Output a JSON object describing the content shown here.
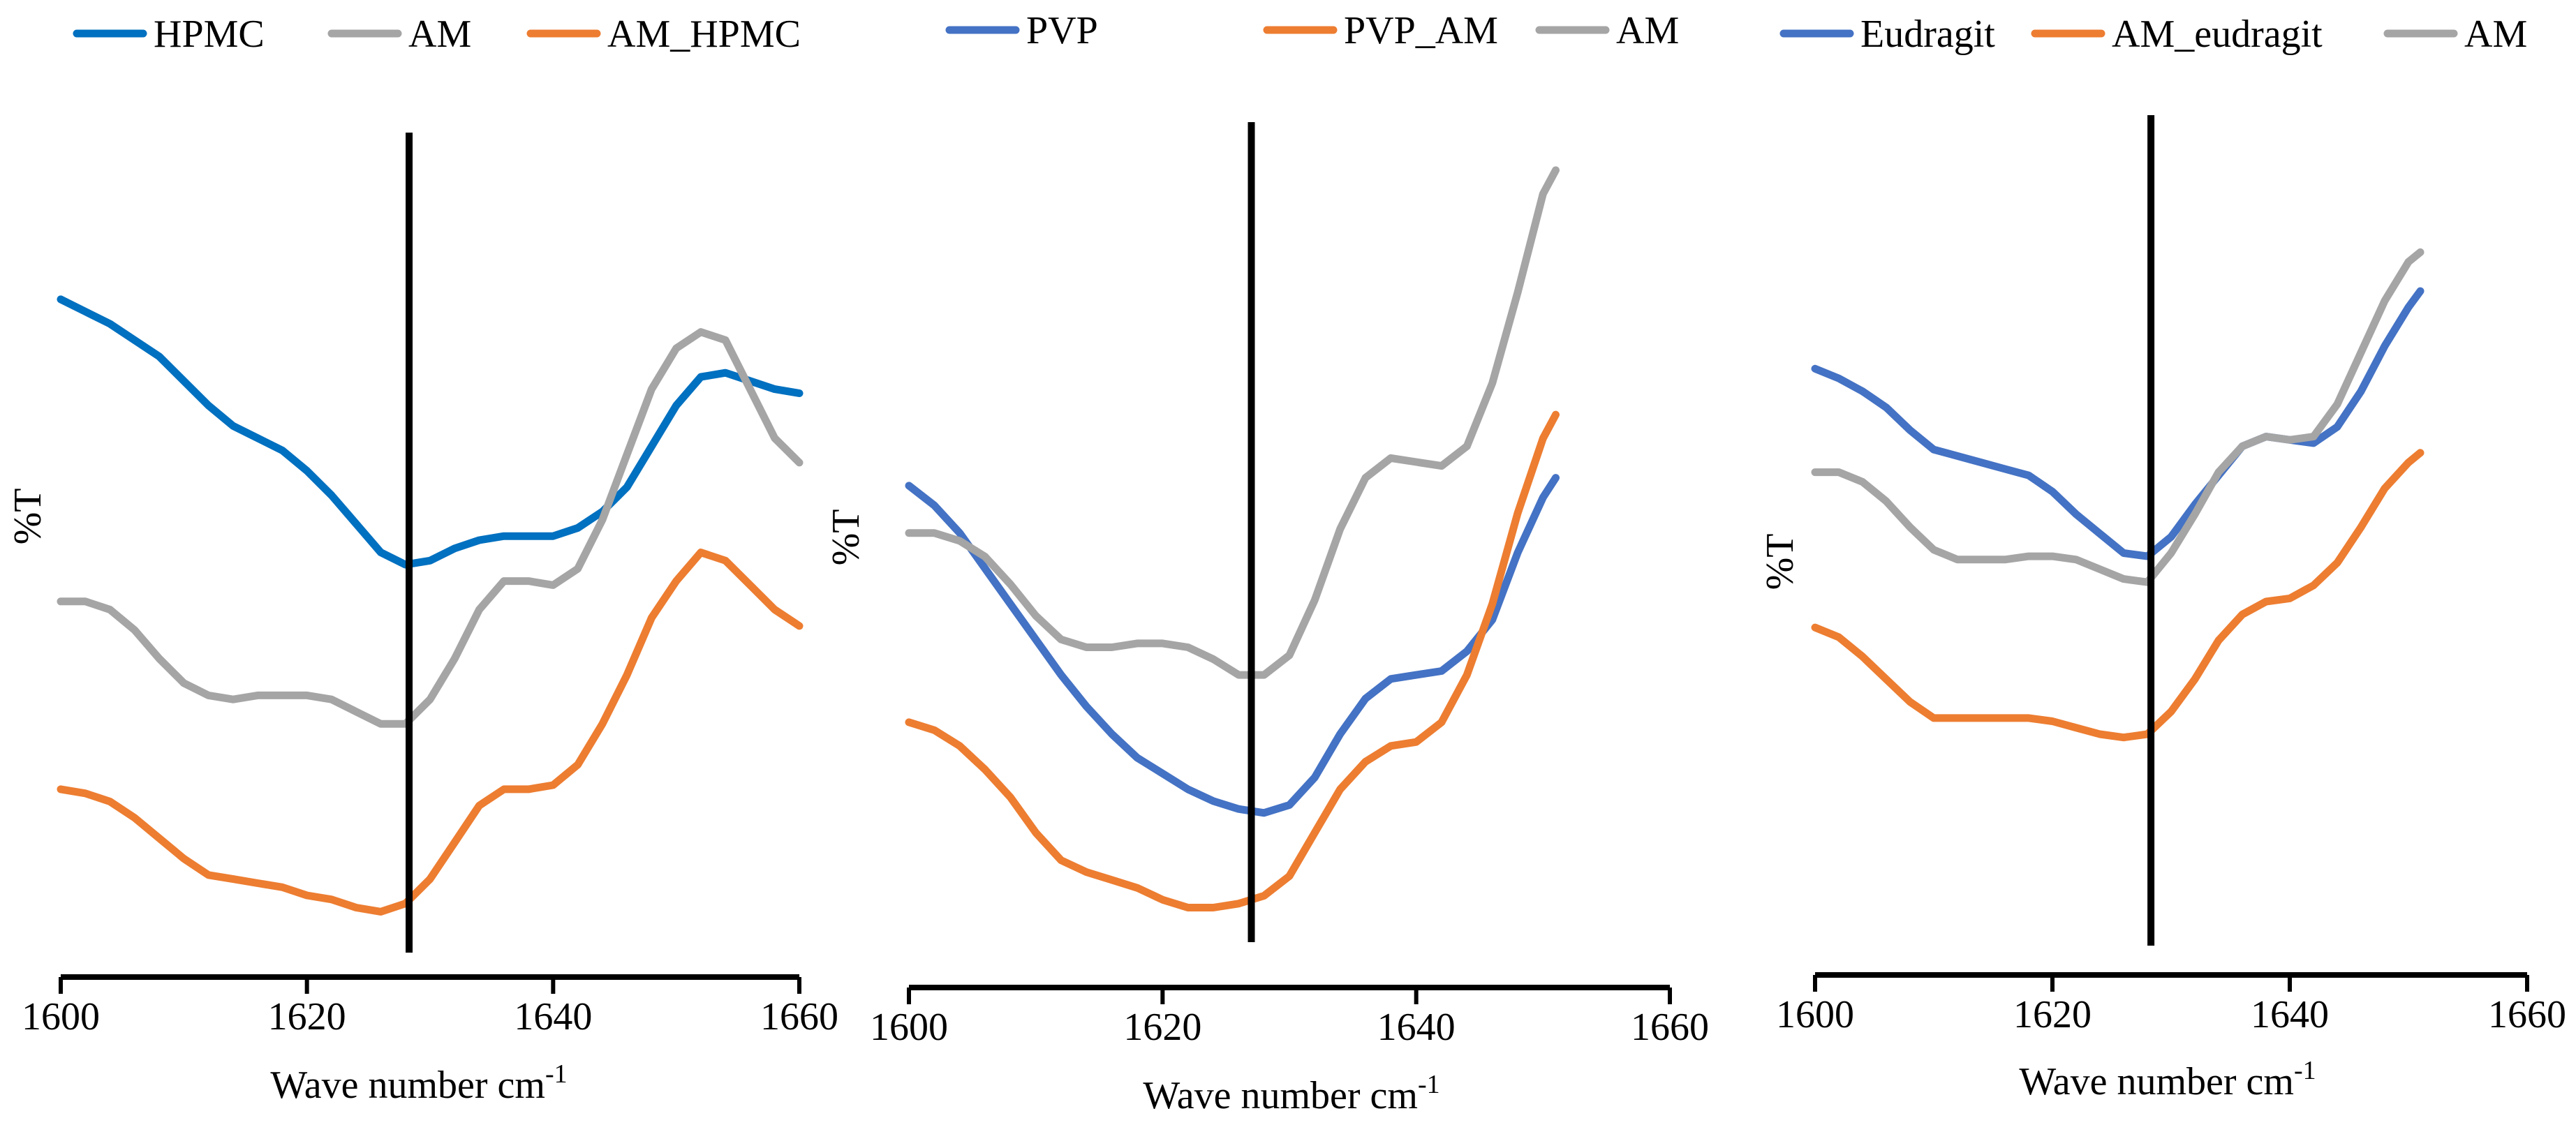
{
  "chart_data": [
    {
      "type": "line",
      "xlabel": "Wave  number cm",
      "xlabel_sup": "-1",
      "ylabel": "%T",
      "xlim": [
        1600,
        1660
      ],
      "ylim": [
        0,
        100
      ],
      "x_ticks": [
        1600,
        1620,
        1640,
        1660
      ],
      "tick_labels": [
        "1600",
        "1620",
        "1640",
        "1660"
      ],
      "marker_x": 1628.3,
      "y_ticks_shown": false,
      "legend_position": "top",
      "series": [
        {
          "name": "HPMC",
          "color": "#0070C0",
          "x": [
            1600,
            1602,
            1604,
            1606,
            1608,
            1610,
            1612,
            1614,
            1616,
            1618,
            1620,
            1622,
            1624,
            1626,
            1628,
            1630,
            1632,
            1634,
            1636,
            1638,
            1640,
            1642,
            1644,
            1646,
            1648,
            1650,
            1652,
            1654,
            1656,
            1658,
            1660
          ],
          "y": [
            83,
            81.5,
            80,
            78,
            76,
            73,
            70,
            67.5,
            66,
            64.5,
            62,
            59,
            55.5,
            52,
            50.5,
            51,
            52.5,
            53.5,
            54,
            54,
            54,
            55,
            57,
            60,
            65,
            70,
            73.5,
            74,
            73,
            72,
            71.5
          ]
        },
        {
          "name": "AM",
          "color": "#A5A5A5",
          "x": [
            1600,
            1602,
            1604,
            1606,
            1608,
            1610,
            1612,
            1614,
            1616,
            1618,
            1620,
            1622,
            1624,
            1626,
            1628,
            1630,
            1632,
            1634,
            1636,
            1638,
            1640,
            1642,
            1644,
            1646,
            1648,
            1650,
            1652,
            1654,
            1656,
            1658,
            1660
          ],
          "y": [
            46,
            46,
            45,
            42.5,
            39,
            36,
            34.5,
            34,
            34.5,
            34.5,
            34.5,
            34,
            32.5,
            31,
            31,
            34,
            39,
            45,
            48.5,
            48.5,
            48,
            50,
            56,
            64,
            72,
            77,
            79,
            78,
            72,
            66,
            63
          ]
        },
        {
          "name": "AM_HPMC",
          "color": "#ED7D31",
          "x": [
            1600,
            1602,
            1604,
            1606,
            1608,
            1610,
            1612,
            1614,
            1616,
            1618,
            1620,
            1622,
            1624,
            1626,
            1628,
            1630,
            1632,
            1634,
            1636,
            1638,
            1640,
            1642,
            1644,
            1646,
            1648,
            1650,
            1652,
            1654,
            1656,
            1658,
            1660
          ],
          "y": [
            23,
            22.5,
            21.5,
            19.5,
            17,
            14.5,
            12.5,
            12,
            11.5,
            11,
            10,
            9.5,
            8.5,
            8,
            9,
            12,
            16.5,
            21,
            23,
            23,
            23.5,
            26,
            31,
            37,
            44,
            48.5,
            52,
            51,
            48,
            45,
            43
          ]
        }
      ]
    },
    {
      "type": "line",
      "xlabel": "Wave number cm",
      "xlabel_sup": "-1",
      "ylabel": "%T",
      "xlim": [
        1600,
        1660
      ],
      "ylim": [
        0,
        100
      ],
      "x_ticks": [
        1600,
        1620,
        1640,
        1660
      ],
      "tick_labels": [
        "1600",
        "1620",
        "1640",
        "1660"
      ],
      "marker_x": 1627,
      "y_ticks_shown": false,
      "legend_position": "top",
      "series": [
        {
          "name": "PVP",
          "color": "#4472C4",
          "x": [
            1600,
            1602,
            1604,
            1606,
            1608,
            1610,
            1612,
            1614,
            1616,
            1618,
            1620,
            1622,
            1624,
            1626,
            1628,
            1630,
            1632,
            1634,
            1636,
            1638,
            1640,
            1642,
            1644,
            1646,
            1648,
            1650,
            1651
          ],
          "y": [
            57,
            54.5,
            51,
            46.5,
            42,
            37.5,
            33,
            29,
            25.5,
            22.5,
            20.5,
            18.5,
            17,
            16,
            15.5,
            16.5,
            20,
            25.5,
            30,
            32.5,
            33,
            33.5,
            36,
            40,
            48.5,
            55.5,
            58
          ]
        },
        {
          "name": "PVP_AM",
          "color": "#ED7D31",
          "x": [
            1600,
            1602,
            1604,
            1606,
            1608,
            1610,
            1612,
            1614,
            1616,
            1618,
            1620,
            1622,
            1624,
            1626,
            1628,
            1630,
            1632,
            1634,
            1636,
            1638,
            1640,
            1642,
            1644,
            1646,
            1648,
            1650,
            1651
          ],
          "y": [
            27,
            26,
            24,
            21,
            17.5,
            13,
            9.5,
            8,
            7,
            6,
            4.5,
            3.5,
            3.5,
            4,
            5,
            7.5,
            13,
            18.5,
            22,
            24,
            24.5,
            27,
            33,
            42,
            53.5,
            63,
            66
          ]
        },
        {
          "name": "AM",
          "color": "#A5A5A5",
          "x": [
            1600,
            1602,
            1604,
            1606,
            1608,
            1610,
            1612,
            1614,
            1616,
            1618,
            1620,
            1622,
            1624,
            1626,
            1628,
            1630,
            1632,
            1634,
            1636,
            1638,
            1640,
            1642,
            1644,
            1646,
            1648,
            1650,
            1651
          ],
          "y": [
            51,
            51,
            50,
            48,
            44.5,
            40.5,
            37.5,
            36.5,
            36.5,
            37,
            37,
            36.5,
            35,
            33,
            33,
            35.5,
            42.5,
            51.5,
            58,
            60.5,
            60,
            59.5,
            62,
            70,
            81.5,
            94,
            97
          ]
        }
      ]
    },
    {
      "type": "line",
      "xlabel": "Wave number cm",
      "xlabel_sup": "-1",
      "ylabel": "%T",
      "xlim": [
        1600,
        1660
      ],
      "ylim": [
        0,
        100
      ],
      "x_ticks": [
        1600,
        1620,
        1640,
        1660
      ],
      "tick_labels": [
        "1600",
        "1620",
        "1640",
        "1660"
      ],
      "marker_x": 1628.3,
      "y_ticks_shown": false,
      "legend_position": "top",
      "series": [
        {
          "name": "Eudragit",
          "color": "#4472C4",
          "x": [
            1600,
            1602,
            1604,
            1606,
            1608,
            1610,
            1612,
            1614,
            1616,
            1618,
            1620,
            1622,
            1624,
            1626,
            1628,
            1630,
            1632,
            1634,
            1636,
            1638,
            1640,
            1642,
            1644,
            1646,
            1648,
            1650,
            1651
          ],
          "y": [
            73,
            71.5,
            69.5,
            67,
            63.5,
            60.5,
            59.5,
            58.5,
            57.5,
            56.5,
            54,
            50.5,
            47.5,
            44.5,
            44,
            47,
            52,
            56.5,
            61,
            62.5,
            62,
            61.5,
            64,
            69.5,
            76.5,
            82.5,
            85
          ]
        },
        {
          "name": "AM_eudragit",
          "color": "#ED7D31",
          "x": [
            1600,
            1602,
            1604,
            1606,
            1608,
            1610,
            1612,
            1614,
            1616,
            1618,
            1620,
            1622,
            1624,
            1626,
            1628,
            1630,
            1632,
            1634,
            1636,
            1638,
            1640,
            1642,
            1644,
            1646,
            1648,
            1650,
            1651
          ],
          "y": [
            33,
            31.5,
            28.5,
            25,
            21.5,
            19,
            19,
            19,
            19,
            19,
            18.5,
            17.5,
            16.5,
            16,
            16.5,
            20,
            25,
            31,
            35,
            37,
            37.5,
            39.5,
            43,
            48.5,
            54.5,
            58.5,
            60
          ]
        },
        {
          "name": "AM",
          "color": "#A5A5A5",
          "x": [
            1600,
            1602,
            1604,
            1606,
            1608,
            1610,
            1612,
            1614,
            1616,
            1618,
            1620,
            1622,
            1624,
            1626,
            1628,
            1630,
            1632,
            1634,
            1636,
            1638,
            1640,
            1642,
            1644,
            1646,
            1648,
            1650,
            1651
          ],
          "y": [
            57,
            57,
            55.5,
            52.5,
            48.5,
            45,
            43.5,
            43.5,
            43.5,
            44,
            44,
            43.5,
            42,
            40.5,
            40,
            44.5,
            50.5,
            57,
            61,
            62.5,
            62,
            62.5,
            67.5,
            75.5,
            83.5,
            89.5,
            91
          ]
        }
      ]
    }
  ]
}
